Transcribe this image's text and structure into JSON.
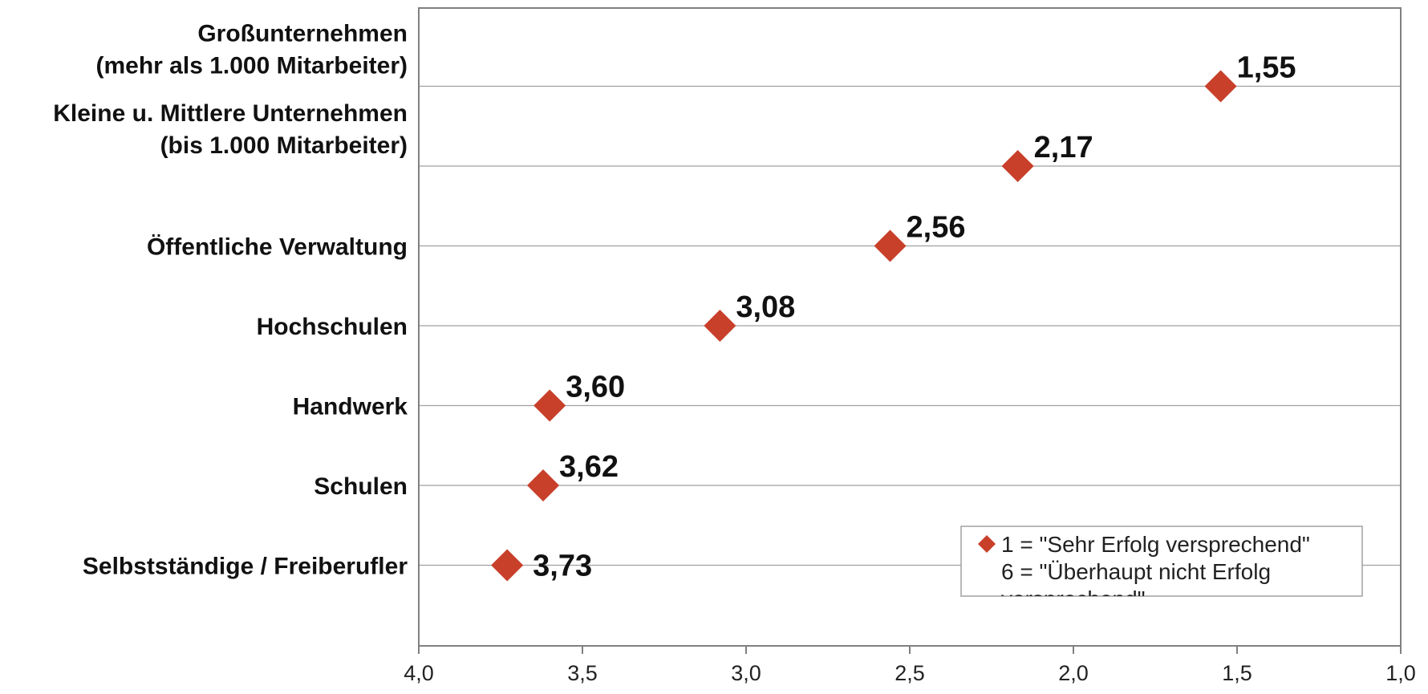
{
  "chart_data": {
    "type": "scatter",
    "title": "",
    "xlabel": "",
    "ylabel": "",
    "xlim": [
      4.0,
      1.0
    ],
    "x_reversed": true,
    "x_ticks": [
      4.0,
      3.5,
      3.0,
      2.5,
      2.0,
      1.5,
      1.0
    ],
    "x_tick_labels": [
      "4,0",
      "3,5",
      "3,0",
      "2,5",
      "2,0",
      "1,5",
      "1,0"
    ],
    "grid": "horizontal",
    "legend_position": "bottom-right",
    "marker": "diamond",
    "marker_color": "#c8402a",
    "gridline_color": "#a0a0a0",
    "frame_color": "#808080",
    "categories": [
      {
        "lines": [
          "Großunternehmen",
          "(mehr als 1.000 Mitarbeiter)"
        ],
        "value": 1.55,
        "value_label": "1,55"
      },
      {
        "lines": [
          "Kleine u. Mittlere Unternehmen",
          "(bis 1.000 Mitarbeiter)"
        ],
        "value": 2.17,
        "value_label": "2,17"
      },
      {
        "lines": [
          "Öffentliche Verwaltung"
        ],
        "value": 2.56,
        "value_label": "2,56"
      },
      {
        "lines": [
          "Hochschulen"
        ],
        "value": 3.08,
        "value_label": "3,08"
      },
      {
        "lines": [
          "Handwerk"
        ],
        "value": 3.6,
        "value_label": "3,60"
      },
      {
        "lines": [
          "Schulen"
        ],
        "value": 3.62,
        "value_label": "3,62"
      },
      {
        "lines": [
          "Selbstständige / Freiberufler"
        ],
        "value": 3.73,
        "value_label": "3,73"
      }
    ],
    "legend": {
      "lines": [
        "1 = \"Sehr Erfolg versprechend\"",
        "6 = \"Überhaupt nicht Erfolg",
        "versprechend\""
      ]
    }
  }
}
